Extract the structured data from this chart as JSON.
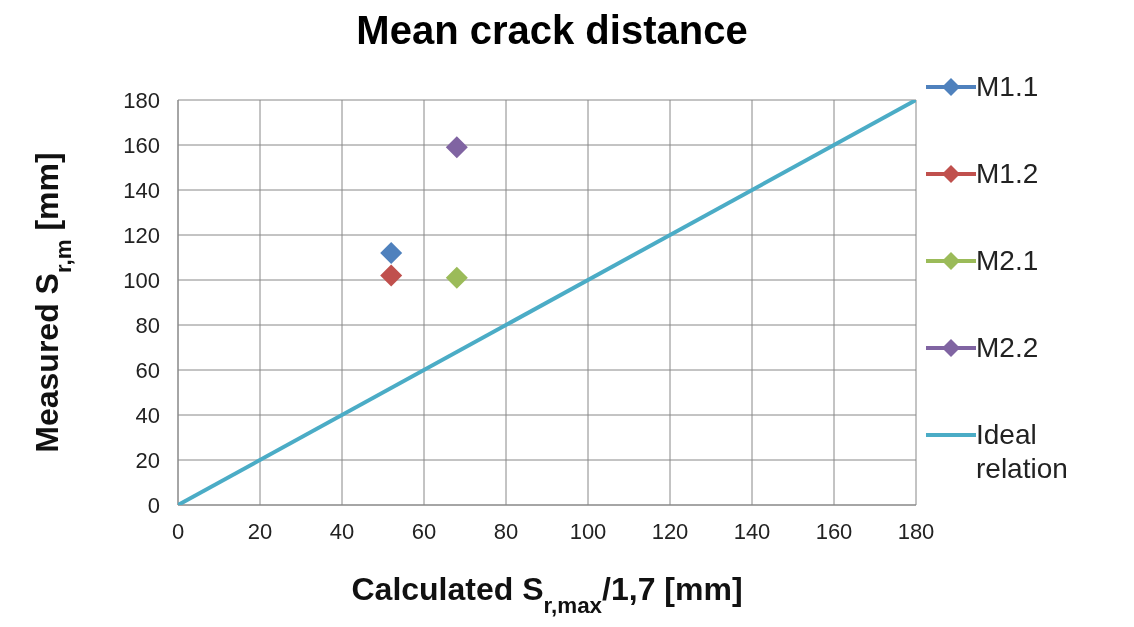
{
  "chart_data": {
    "type": "scatter",
    "title": "Mean crack distance",
    "xlabel": "Calculated S$_{r,max}$/1,7 [mm]",
    "ylabel": "Measured S$_{r,m}$ [mm]",
    "xlim": [
      0,
      180
    ],
    "xticks": [
      0,
      20,
      40,
      60,
      80,
      100,
      120,
      140,
      160,
      180
    ],
    "ylim": [
      0,
      180
    ],
    "yticks": [
      0,
      20,
      40,
      60,
      80,
      100,
      120,
      140,
      160,
      180
    ],
    "grid": true,
    "legend": "right",
    "marker": "diamond",
    "series": [
      {
        "name": "M1.1",
        "color": "#4f81bd",
        "x": [
          52
        ],
        "values": [
          112
        ]
      },
      {
        "name": "M1.2",
        "color": "#c0504d",
        "x": [
          52
        ],
        "values": [
          102
        ]
      },
      {
        "name": "M2.1",
        "color": "#9bbb59",
        "x": [
          68
        ],
        "values": [
          101
        ]
      },
      {
        "name": "M2.2",
        "color": "#8064a2",
        "x": [
          68
        ],
        "values": [
          159
        ]
      },
      {
        "name": "Ideal relation",
        "type": "line",
        "marker": "none",
        "line_style": "solid",
        "color": "#4bacc6",
        "x": [
          0,
          180
        ],
        "values": [
          0,
          180
        ]
      }
    ]
  }
}
